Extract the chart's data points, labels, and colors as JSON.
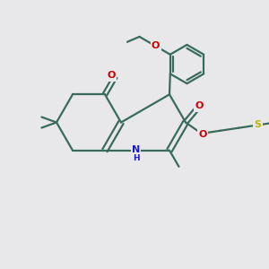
{
  "bg_color": "#e8e8eb",
  "bond_color": "#3a6b5a",
  "bond_width": 1.6,
  "atom_colors": {
    "O": "#cc0000",
    "N": "#1a1acc",
    "S": "#b8b800",
    "C": "#3a6b5a"
  },
  "figsize": [
    3.0,
    3.0
  ],
  "dpi": 100
}
